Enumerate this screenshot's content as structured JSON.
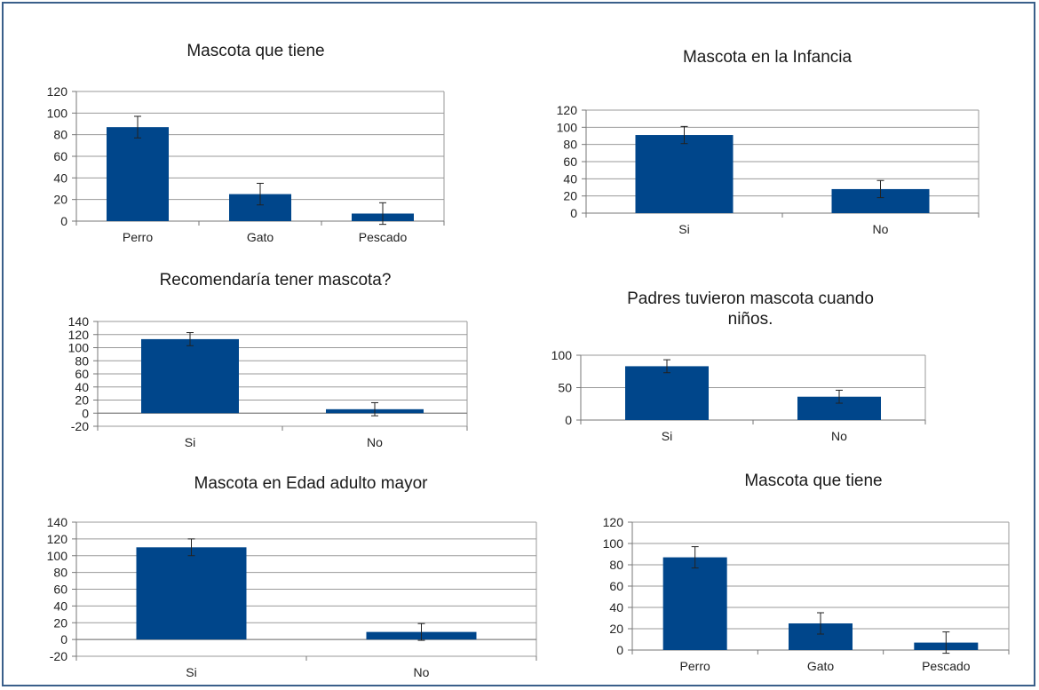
{
  "chart_data": [
    {
      "type": "bar",
      "title": "Mascota que tiene",
      "categories": [
        "Perro",
        "Gato",
        "Pescado"
      ],
      "values": [
        87,
        25,
        7
      ],
      "error": [
        10,
        10,
        10
      ],
      "ylim": [
        0,
        120
      ],
      "yticks": [
        0,
        20,
        40,
        60,
        80,
        100,
        120
      ],
      "grid": true,
      "color": "#00468b"
    },
    {
      "type": "bar",
      "title": "Mascota en la Infancia",
      "categories": [
        "Si",
        "No"
      ],
      "values": [
        91,
        28
      ],
      "error": [
        10,
        10
      ],
      "ylim": [
        0,
        120
      ],
      "yticks": [
        0,
        20,
        40,
        60,
        80,
        100,
        120
      ],
      "grid": true,
      "color": "#00468b"
    },
    {
      "type": "bar",
      "title": "Recomendaría tener mascota?",
      "categories": [
        "Si",
        "No"
      ],
      "values": [
        113,
        6
      ],
      "error": [
        10,
        10
      ],
      "ylim": [
        -20,
        140
      ],
      "yticks": [
        -20,
        0,
        20,
        40,
        60,
        80,
        100,
        120,
        140
      ],
      "grid": true,
      "color": "#00468b"
    },
    {
      "type": "bar",
      "title": "Padres tuvieron mascota cuando niños.",
      "categories": [
        "Si",
        "No"
      ],
      "values": [
        83,
        36
      ],
      "error": [
        10,
        10
      ],
      "ylim": [
        0,
        100
      ],
      "yticks": [
        0,
        50,
        100
      ],
      "grid": true,
      "color": "#00468b"
    },
    {
      "type": "bar",
      "title": "Mascota en Edad adulto mayor",
      "categories": [
        "Si",
        "No"
      ],
      "values": [
        110,
        9
      ],
      "error": [
        10,
        10
      ],
      "ylim": [
        -20,
        140
      ],
      "yticks": [
        -20,
        0,
        20,
        40,
        60,
        80,
        100,
        120,
        140
      ],
      "grid": true,
      "color": "#00468b"
    },
    {
      "type": "bar",
      "title": "Mascota que tiene",
      "categories": [
        "Perro",
        "Gato",
        "Pescado"
      ],
      "values": [
        87,
        25,
        7
      ],
      "error": [
        10,
        10,
        10
      ],
      "ylim": [
        0,
        120
      ],
      "yticks": [
        0,
        20,
        40,
        60,
        80,
        100,
        120
      ],
      "grid": true,
      "color": "#00468b"
    }
  ]
}
